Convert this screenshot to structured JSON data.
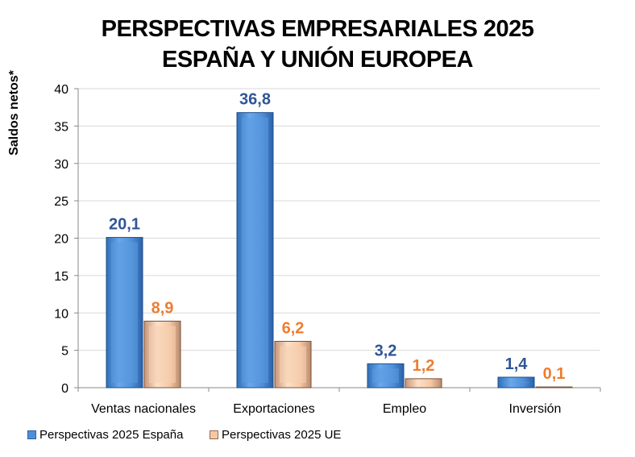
{
  "chart_data": {
    "type": "bar",
    "title": [
      "PERSPECTIVAS EMPRESARIALES 2025",
      "ESPAÑA Y UNIÓN EUROPEA"
    ],
    "ylabel": "Saldos netos*",
    "xlabel": "",
    "ylim": [
      0,
      40
    ],
    "yticks": [
      0,
      5,
      10,
      15,
      20,
      25,
      30,
      35,
      40
    ],
    "grid": true,
    "legend_position": "bottom-left",
    "categories": [
      "Ventas nacionales",
      "Exportaciones",
      "Empleo",
      "Inversión"
    ],
    "series": [
      {
        "name": "Perspectivas 2025 España",
        "values": [
          20.1,
          36.8,
          3.2,
          1.4
        ],
        "labels": [
          "20,1",
          "36,8",
          "3,2",
          "1,4"
        ],
        "color": "#4f8fd8",
        "label_color": "#2f5597"
      },
      {
        "name": "Perspectivas 2025 UE",
        "values": [
          8.9,
          6.2,
          1.2,
          0.1
        ],
        "labels": [
          "8,9",
          "6,2",
          "1,2",
          "0,1"
        ],
        "color": "#f5c8a5",
        "label_color": "#ed7d31"
      }
    ]
  }
}
